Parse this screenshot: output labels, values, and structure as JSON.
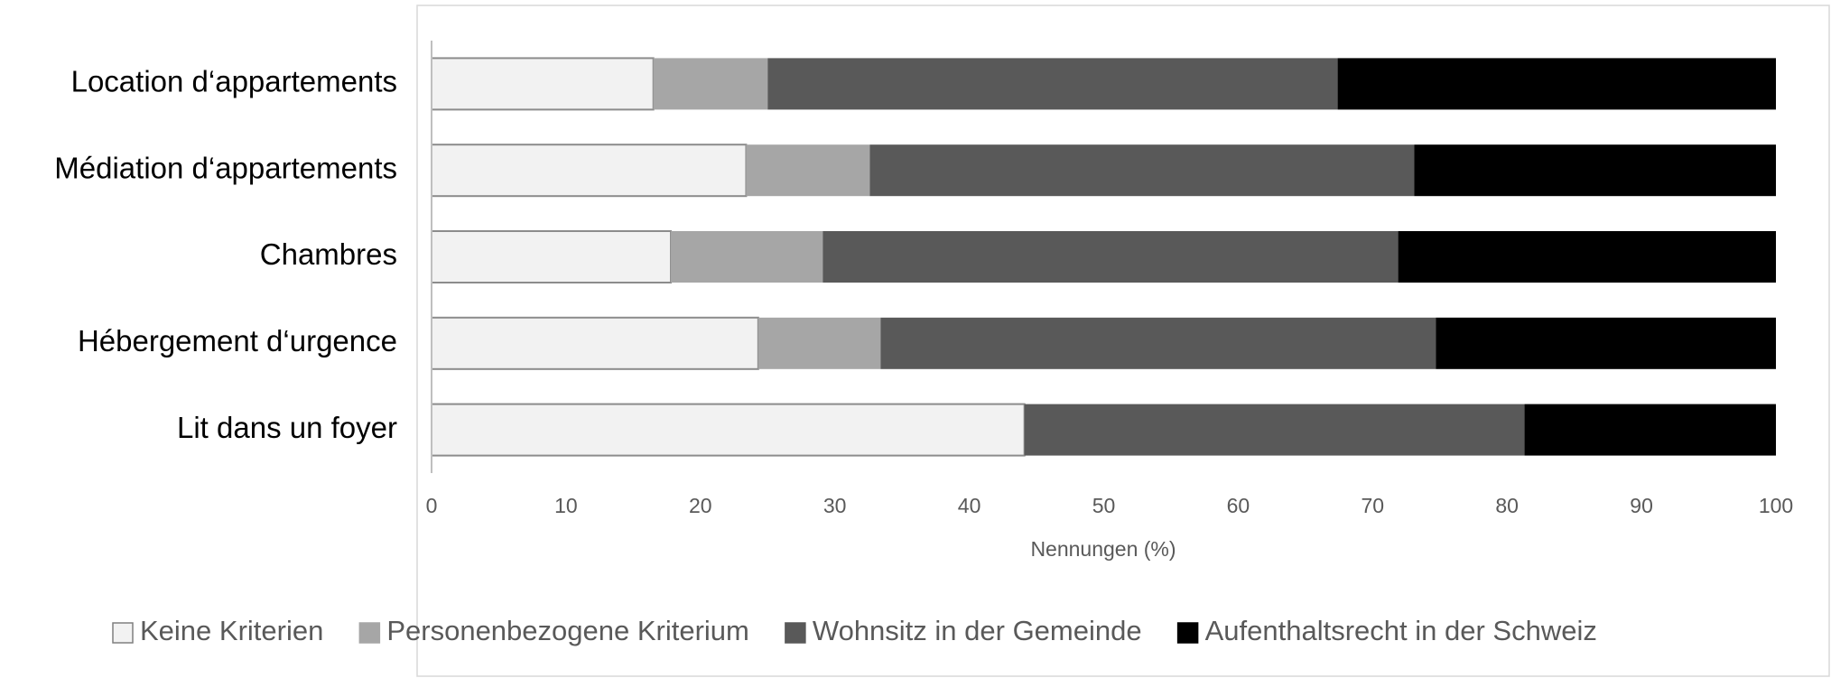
{
  "chart_data": {
    "type": "stacked_barh",
    "categories": [
      "Location d‘appartements",
      "Médiation d‘appartements",
      "Chambres",
      "Hébergement d‘urgence",
      "Lit dans un foyer"
    ],
    "series": [
      {
        "name": "Keine Kriterien",
        "color": "#f2f2f2",
        "values": [
          16.5,
          23.4,
          17.8,
          24.3,
          44.1
        ]
      },
      {
        "name": "Personenbezogene Kriterium",
        "color": "#a6a6a6",
        "values": [
          8.5,
          9.2,
          11.3,
          9.1,
          0
        ]
      },
      {
        "name": "Wohnsitz in der Gemeinde",
        "color": "#595959",
        "values": [
          42.4,
          40.5,
          42.8,
          41.3,
          37.2
        ]
      },
      {
        "name": "Aufenthaltsrecht in der Schweiz",
        "color": "#000000",
        "values": [
          32.6,
          26.9,
          28.1,
          25.3,
          18.7
        ]
      }
    ],
    "xlabel": "Nennungen (%)",
    "xlim": [
      0,
      100
    ],
    "xticks": [
      0,
      10,
      20,
      30,
      40,
      50,
      60,
      70,
      80,
      90,
      100
    ],
    "grid": false,
    "legend": "bottom"
  }
}
